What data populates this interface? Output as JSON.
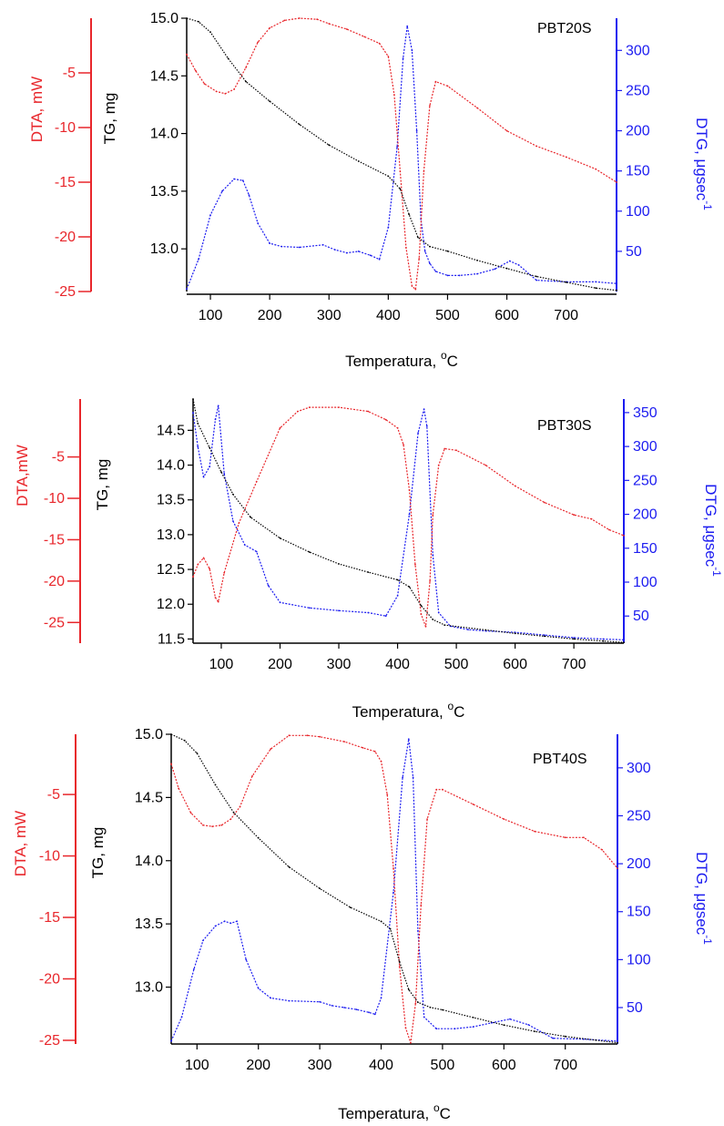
{
  "colors": {
    "tg": "#000000",
    "dta": "#e8262b",
    "dtg": "#1c1cf0"
  },
  "chart_data": [
    {
      "type": "line",
      "sample_label": "PBT20S",
      "xlabel_text": "Temperatura, ",
      "xlabel_sup": "o",
      "xlabel_unit": "C",
      "xlim": [
        60,
        785
      ],
      "x_ticks": [
        100,
        200,
        300,
        400,
        500,
        600,
        700
      ],
      "tg": {
        "label": "TG, mg",
        "ylim": [
          12.63,
          15.0
        ],
        "ticks": [
          13.0,
          13.5,
          14.0,
          14.5,
          15.0
        ],
        "x": [
          60,
          80,
          100,
          130,
          160,
          200,
          250,
          300,
          350,
          400,
          420,
          435,
          450,
          470,
          500,
          550,
          600,
          650,
          700,
          750,
          785
        ],
        "y": [
          15.0,
          14.97,
          14.88,
          14.65,
          14.45,
          14.28,
          14.08,
          13.9,
          13.76,
          13.63,
          13.52,
          13.3,
          13.1,
          13.02,
          12.98,
          12.9,
          12.83,
          12.76,
          12.71,
          12.66,
          12.64
        ]
      },
      "dta": {
        "label": "DTA, mW",
        "ylim": [
          -25,
          0
        ],
        "ticks": [
          -5,
          -10,
          -15,
          -20,
          -25
        ],
        "x": [
          60,
          75,
          90,
          110,
          125,
          140,
          160,
          180,
          200,
          225,
          250,
          280,
          300,
          330,
          360,
          385,
          400,
          410,
          420,
          430,
          440,
          446,
          452,
          460,
          470,
          480,
          500,
          550,
          600,
          650,
          700,
          750,
          785
        ],
        "y": [
          -3.3,
          -4.8,
          -6.0,
          -6.7,
          -6.9,
          -6.5,
          -4.5,
          -2.2,
          -0.9,
          -0.2,
          0.0,
          -0.1,
          -0.5,
          -1.0,
          -1.7,
          -2.3,
          -3.5,
          -7.0,
          -14.0,
          -21.0,
          -24.5,
          -24.8,
          -22.0,
          -14.0,
          -8.0,
          -5.8,
          -6.2,
          -8.2,
          -10.3,
          -11.7,
          -12.7,
          -13.8,
          -15.0
        ]
      },
      "dtg": {
        "label": "DTG, μgsec",
        "label_sup": "-1",
        "ylim": [
          0,
          340
        ],
        "ticks": [
          50,
          100,
          150,
          200,
          250,
          300
        ],
        "x": [
          60,
          80,
          100,
          120,
          140,
          155,
          165,
          180,
          200,
          220,
          250,
          290,
          310,
          330,
          350,
          370,
          385,
          400,
          415,
          425,
          432,
          440,
          448,
          455,
          462,
          470,
          480,
          500,
          520,
          550,
          580,
          605,
          620,
          650,
          700,
          750,
          785
        ],
        "y": [
          3,
          40,
          95,
          125,
          140,
          138,
          120,
          85,
          60,
          56,
          55,
          58,
          52,
          48,
          50,
          45,
          40,
          80,
          180,
          290,
          330,
          300,
          200,
          90,
          50,
          35,
          25,
          20,
          20,
          22,
          28,
          38,
          33,
          14,
          12,
          12,
          10
        ]
      }
    },
    {
      "type": "line",
      "sample_label": "PBT30S",
      "xlabel_text": "Temperatura, ",
      "xlabel_sup": "o",
      "xlabel_unit": "C",
      "xlim": [
        52,
        785
      ],
      "x_ticks": [
        100,
        200,
        300,
        400,
        500,
        600,
        700
      ],
      "tg": {
        "label": "TG, mg",
        "ylim": [
          11.44,
          14.95
        ],
        "ticks": [
          11.5,
          12.0,
          12.5,
          13.0,
          13.5,
          14.0,
          14.5
        ],
        "x": [
          52,
          60,
          80,
          100,
          120,
          150,
          200,
          250,
          300,
          350,
          400,
          420,
          440,
          460,
          480,
          550,
          600,
          650,
          700,
          750,
          785
        ],
        "y": [
          14.95,
          14.6,
          14.25,
          13.9,
          13.58,
          13.25,
          12.95,
          12.75,
          12.58,
          12.46,
          12.35,
          12.25,
          11.98,
          11.78,
          11.7,
          11.63,
          11.58,
          11.54,
          11.5,
          11.47,
          11.45
        ]
      },
      "dta": {
        "label": "DTA,mW",
        "ylim": [
          -27.5,
          2.0
        ],
        "ticks": [
          -5,
          -10,
          -15,
          -20,
          -25
        ],
        "x": [
          52,
          60,
          70,
          80,
          90,
          95,
          105,
          130,
          160,
          200,
          230,
          250,
          300,
          350,
          380,
          400,
          410,
          420,
          430,
          440,
          448,
          455,
          460,
          470,
          480,
          500,
          550,
          600,
          650,
          700,
          730,
          760,
          785
        ],
        "y": [
          -19.5,
          -18.0,
          -17.2,
          -18.5,
          -22.0,
          -22.5,
          -19.0,
          -13.0,
          -8.0,
          -1.5,
          0.5,
          1.0,
          1.0,
          0.5,
          -0.5,
          -1.5,
          -3.5,
          -9.0,
          -18.0,
          -24.0,
          -25.5,
          -20.0,
          -12.0,
          -6.0,
          -4.0,
          -4.2,
          -6.0,
          -8.5,
          -10.5,
          -12.0,
          -12.5,
          -13.8,
          -14.5
        ]
      },
      "dtg": {
        "label": "DTG, μgsec",
        "label_sup": "-1",
        "ylim": [
          10,
          370
        ],
        "ticks": [
          50,
          100,
          150,
          200,
          250,
          300,
          350
        ],
        "x": [
          52,
          60,
          70,
          80,
          90,
          95,
          105,
          120,
          140,
          160,
          180,
          200,
          250,
          300,
          350,
          380,
          400,
          420,
          435,
          445,
          450,
          460,
          470,
          490,
          520,
          550,
          600,
          650,
          700,
          750,
          785
        ],
        "y": [
          350,
          300,
          255,
          270,
          340,
          360,
          260,
          190,
          155,
          145,
          95,
          70,
          62,
          58,
          55,
          50,
          80,
          200,
          320,
          355,
          330,
          140,
          55,
          35,
          30,
          28,
          26,
          22,
          18,
          16,
          15
        ]
      }
    },
    {
      "type": "line",
      "sample_label": "PBT40S",
      "xlabel_text": "Temperatura, ",
      "xlabel_sup": "o",
      "xlabel_unit": "C",
      "xlim": [
        58,
        785
      ],
      "x_ticks": [
        100,
        200,
        300,
        400,
        500,
        600,
        700
      ],
      "tg": {
        "label": "TG, mg",
        "ylim": [
          12.55,
          15.0
        ],
        "ticks": [
          13.0,
          13.5,
          14.0,
          14.5,
          15.0
        ],
        "x": [
          58,
          80,
          100,
          130,
          160,
          200,
          250,
          300,
          350,
          400,
          415,
          430,
          445,
          460,
          480,
          500,
          550,
          600,
          650,
          700,
          750,
          785
        ],
        "y": [
          15.0,
          14.95,
          14.85,
          14.6,
          14.38,
          14.18,
          13.95,
          13.78,
          13.63,
          13.52,
          13.46,
          13.2,
          12.98,
          12.88,
          12.84,
          12.82,
          12.76,
          12.7,
          12.65,
          12.61,
          12.58,
          12.56
        ]
      },
      "dta": {
        "label": "DTA, mW",
        "ylim": [
          -25.3,
          -0.1
        ],
        "ticks": [
          -5,
          -10,
          -15,
          -20,
          -25
        ],
        "x": [
          58,
          70,
          90,
          110,
          125,
          140,
          155,
          170,
          190,
          220,
          250,
          280,
          300,
          340,
          370,
          390,
          400,
          410,
          420,
          430,
          440,
          448,
          456,
          465,
          475,
          490,
          500,
          550,
          600,
          650,
          700,
          730,
          760,
          785
        ],
        "y": [
          -2.5,
          -4.5,
          -6.5,
          -7.5,
          -7.6,
          -7.5,
          -7.0,
          -6.0,
          -3.5,
          -1.3,
          -0.2,
          -0.2,
          -0.3,
          -0.7,
          -1.2,
          -1.5,
          -2.3,
          -5.0,
          -11.0,
          -19.0,
          -24.0,
          -25.2,
          -22.0,
          -14.0,
          -7.0,
          -4.6,
          -4.6,
          -5.8,
          -7.0,
          -8.0,
          -8.5,
          -8.5,
          -9.5,
          -11.0
        ]
      },
      "dtg": {
        "label": "DTG, μgsec",
        "label_sup": "-1",
        "ylim": [
          12,
          335
        ],
        "ticks": [
          50,
          100,
          150,
          200,
          250,
          300
        ],
        "x": [
          58,
          75,
          95,
          110,
          130,
          145,
          155,
          165,
          180,
          200,
          220,
          250,
          300,
          320,
          340,
          360,
          380,
          390,
          400,
          420,
          435,
          445,
          452,
          460,
          470,
          490,
          520,
          550,
          580,
          610,
          640,
          680,
          730,
          785
        ],
        "y": [
          15,
          40,
          90,
          120,
          135,
          140,
          138,
          140,
          100,
          70,
          60,
          57,
          56,
          52,
          50,
          48,
          45,
          43,
          60,
          170,
          290,
          330,
          290,
          130,
          40,
          28,
          28,
          30,
          34,
          38,
          32,
          18,
          17,
          15
        ]
      }
    }
  ]
}
